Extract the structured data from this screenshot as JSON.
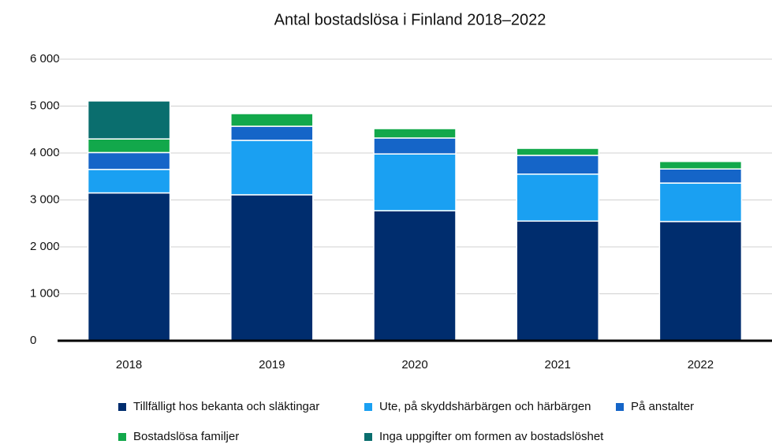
{
  "chart_data": {
    "type": "stacked_bar",
    "title": "Antal bostadslösa i Finland 2018–2022",
    "categories": [
      "2018",
      "2019",
      "2020",
      "2021",
      "2022"
    ],
    "series": [
      {
        "name": "Tillfälligt hos bekanta och släktingar",
        "color": "#002d6e",
        "values": [
          3150,
          3110,
          2770,
          2550,
          2540
        ]
      },
      {
        "name": "Ute, på skyddshärbärgen och härbärgen",
        "color": "#1aa0f2",
        "values": [
          500,
          1160,
          1210,
          1000,
          820
        ]
      },
      {
        "name": "På anstalter",
        "color": "#1565c8",
        "values": [
          360,
          300,
          340,
          400,
          300
        ]
      },
      {
        "name": "Bostadslösa familjer",
        "color": "#12a84b",
        "values": [
          290,
          270,
          200,
          150,
          160
        ]
      },
      {
        "name": "Inga uppgifter om formen av bostadslöshet",
        "color": "#0a6e6e",
        "values": [
          810,
          0,
          0,
          0,
          0
        ]
      }
    ],
    "ylim": [
      0,
      6000
    ],
    "yticks": [
      0,
      {
        "value": 1000,
        "label": "1 000"
      },
      {
        "value": 2000,
        "label": "2 000"
      },
      {
        "value": 3000,
        "label": "3 000"
      },
      {
        "value": 4000,
        "label": "4 000"
      },
      {
        "value": 5000,
        "label": "5 000"
      },
      {
        "value": 6000,
        "label": "6 000"
      }
    ],
    "grid": true
  }
}
